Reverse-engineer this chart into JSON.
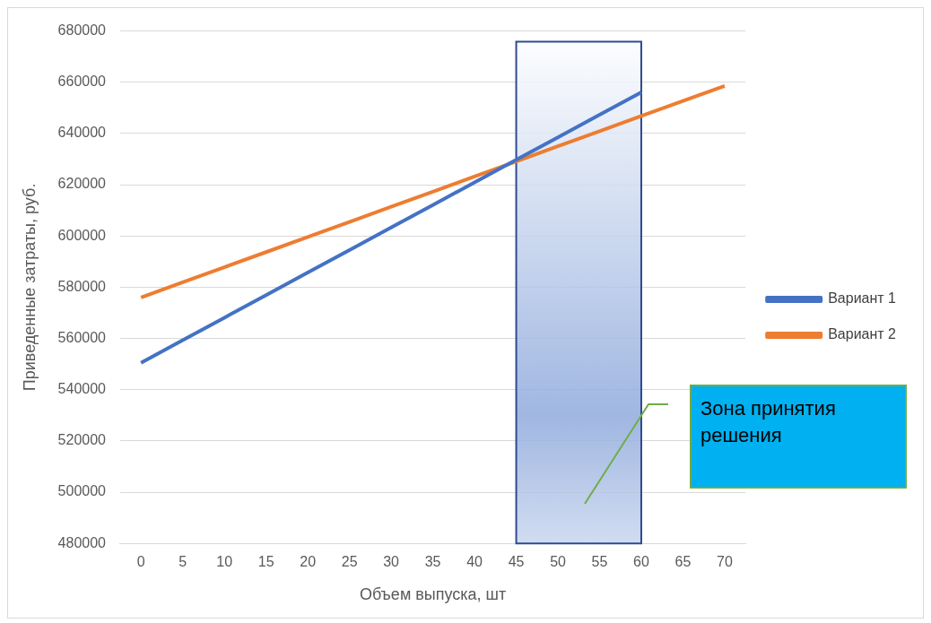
{
  "chart_data": {
    "type": "line",
    "xlabel": "Объем выпуска, шт",
    "ylabel": "Приведенные затраты, руб.",
    "categories": [
      "0",
      "5",
      "10",
      "15",
      "20",
      "25",
      "30",
      "35",
      "40",
      "45",
      "50",
      "55",
      "60",
      "65",
      "70"
    ],
    "series": [
      {
        "name": "Вариант 1",
        "color": "#4472c4",
        "values": [
          550500,
          559300,
          568100,
          576900,
          585700,
          594500,
          603300,
          612100,
          620900,
          629700,
          638500,
          647300,
          656100,
          null,
          null
        ]
      },
      {
        "name": "Вариант 2",
        "color": "#ed7d31",
        "values": [
          576000,
          581900,
          587800,
          593700,
          599600,
          605500,
          611400,
          617300,
          623200,
          629100,
          635000,
          640900,
          646800,
          652700,
          658600
        ]
      }
    ],
    "ylim": [
      480000,
      680000
    ],
    "yticks": [
      480000,
      500000,
      520000,
      540000,
      560000,
      580000,
      600000,
      620000,
      640000,
      660000,
      680000
    ],
    "grid": "y",
    "legend": "right",
    "marker": "none",
    "line_style": "solid",
    "bands": [
      {
        "axis": "x",
        "from": "45",
        "to": "60",
        "color": "#8faadc"
      }
    ],
    "annotations": [
      "Зона принятия решения"
    ]
  }
}
